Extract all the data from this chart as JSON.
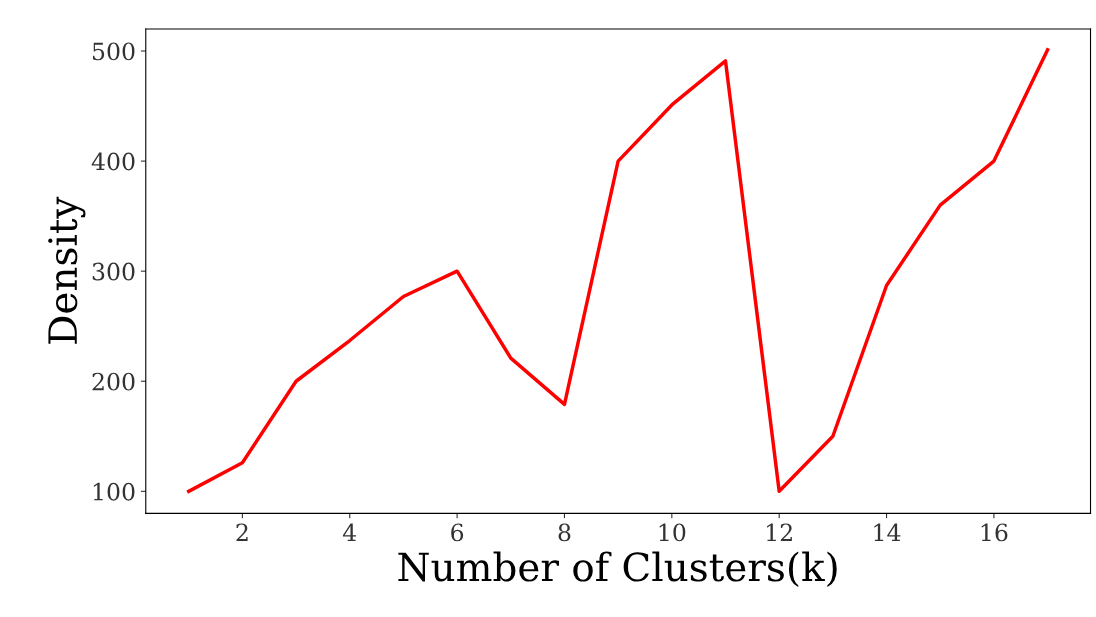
{
  "chart_data": {
    "type": "line",
    "xlabel": "Number of Clusters(k)",
    "ylabel": "Density",
    "x": [
      1,
      2,
      3,
      4,
      5,
      6,
      7,
      8,
      9,
      10,
      11,
      12,
      13,
      14,
      15,
      16,
      17
    ],
    "series": [
      {
        "color": "#ff0000",
        "values": [
          100,
          126,
          200,
          237,
          277,
          300,
          221,
          179,
          400,
          451,
          491,
          100,
          150,
          287,
          360,
          400,
          501
        ]
      }
    ],
    "xlim": [
      0.2,
      17.8
    ],
    "xticks": [
      2,
      4,
      6,
      8,
      10,
      12,
      14,
      16
    ],
    "ylim": [
      80,
      520
    ],
    "yticks": [
      100,
      200,
      300,
      400,
      500
    ],
    "grid": false,
    "legend": false
  }
}
